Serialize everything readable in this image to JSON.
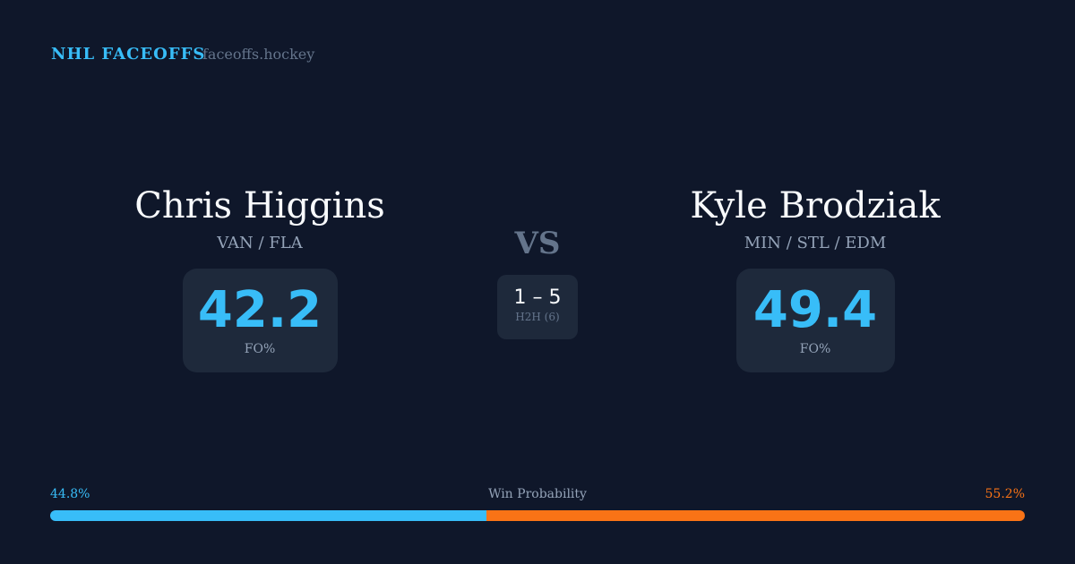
{
  "header": {
    "brand": "NHL FACEOFFS",
    "site": "faceoffs.hockey"
  },
  "left": {
    "name": "Chris Higgins",
    "teams": "VAN / FLA",
    "fo_pct": "42.2",
    "fo_label": "FO%"
  },
  "right": {
    "name": "Kyle Brodziak",
    "teams": "MIN / STL / EDM",
    "fo_pct": "49.4",
    "fo_label": "FO%"
  },
  "vs": "VS",
  "h2h": {
    "score": "1 – 5",
    "label": "H2H (6)"
  },
  "win_probability": {
    "label": "Win Probability",
    "left_text": "44.8%",
    "right_text": "55.2%",
    "left": 44.8,
    "right": 55.2,
    "left_color": "#38bdf8",
    "right_color": "#f97316"
  }
}
